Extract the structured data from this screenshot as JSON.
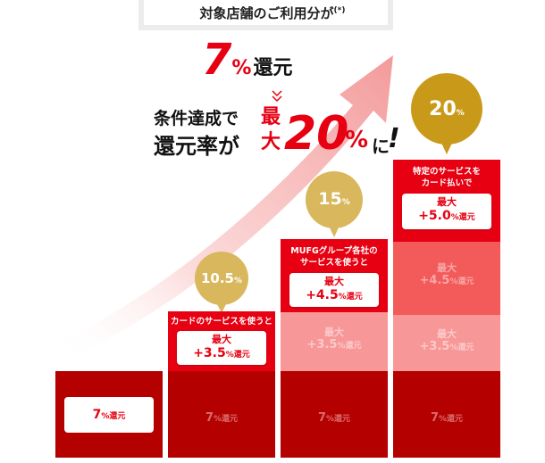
{
  "header": {
    "title": "対象店舗のご利用分が",
    "footnote_mark": "(*)",
    "base_rate_num": "7",
    "base_rate_pct": "%",
    "base_rate_word": "還元"
  },
  "condition": {
    "line1": "条件達成で",
    "line2": "還元率が",
    "max_label": "最大",
    "max_num": "20",
    "max_pct": "%",
    "suffix": "に",
    "excl": "!"
  },
  "columns": [
    {
      "base": {
        "num": "7",
        "pct": "%",
        "word": "還元"
      }
    },
    {
      "bubble": {
        "num": "10.5",
        "pct": "%"
      },
      "condition_text": "カードのサービスを使うと",
      "tile": {
        "max": "最大",
        "plus": "+3.5",
        "pct": "%",
        "word": "還元"
      },
      "base": {
        "num": "7",
        "pct": "%",
        "word": "還元"
      }
    },
    {
      "bubble": {
        "num": "15",
        "pct": "%"
      },
      "condition_text_line1": "MUFGグループ各社の",
      "condition_text_line2": "サービスを使うと",
      "tile": {
        "max": "最大",
        "plus": "+4.5",
        "pct": "%",
        "word": "還元"
      },
      "ghost1": {
        "max": "最大",
        "plus": "+3.5",
        "pct": "%",
        "word": "還元"
      },
      "base": {
        "num": "7",
        "pct": "%",
        "word": "還元"
      }
    },
    {
      "bubble": {
        "num": "20",
        "pct": "%"
      },
      "condition_text_line1": "特定のサービスを",
      "condition_text_line2": "カード払いで",
      "tile": {
        "max": "最大",
        "plus": "+5.0",
        "pct": "%",
        "word": "還元"
      },
      "ghost1": {
        "max": "最大",
        "plus": "+4.5",
        "pct": "%",
        "word": "還元"
      },
      "ghost2": {
        "max": "最大",
        "plus": "+3.5",
        "pct": "%",
        "word": "還元"
      },
      "base": {
        "num": "7",
        "pct": "%",
        "word": "還元"
      }
    }
  ],
  "colors": {
    "red": "#e60012",
    "dark_red": "#b50000",
    "mid_red": "#f35a5a",
    "light_red": "#f79797",
    "gold": "#d9b75c",
    "dark_gold": "#c99a1a"
  },
  "icons": [
    "growth-arrow-icon",
    "chevron-down-icon",
    "speech-bubble-icon"
  ]
}
